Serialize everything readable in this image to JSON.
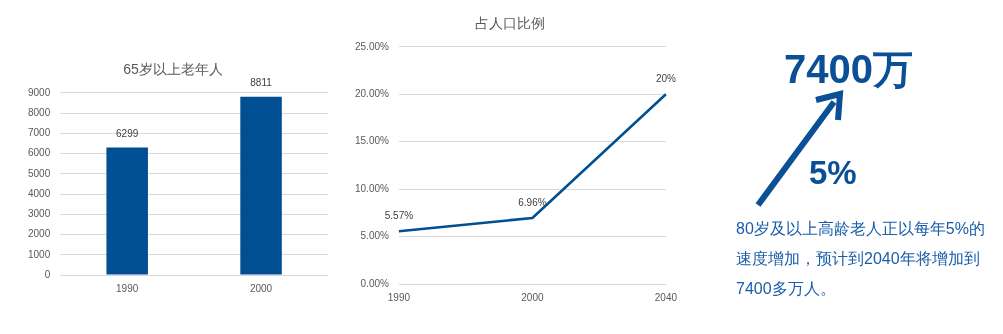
{
  "chart_data": [
    {
      "type": "bar",
      "title": "65岁以上老年人",
      "categories": [
        "1990",
        "2000"
      ],
      "values": [
        6299,
        8811
      ],
      "color": "#004f93",
      "ylim": [
        0,
        9000
      ],
      "yticks": [
        0,
        1000,
        2000,
        3000,
        4000,
        5000,
        6000,
        7000,
        8000,
        9000
      ],
      "grid": "y",
      "data_labels": true
    },
    {
      "type": "line",
      "title": "占人口比例",
      "categories": [
        "1990",
        "2000",
        "2040"
      ],
      "values": [
        5.57,
        6.96,
        20
      ],
      "value_labels": [
        "5.57%",
        "6.96%",
        "20%"
      ],
      "color": "#004f93",
      "ylim": [
        0,
        25
      ],
      "yticks": [
        {
          "value": 0,
          "label": "0.00%"
        },
        {
          "value": 5,
          "label": "5.00%"
        },
        {
          "value": 10,
          "label": "10.00%"
        },
        {
          "value": 15,
          "label": "15.00%"
        },
        {
          "value": 20,
          "label": "20.00%"
        },
        {
          "value": 25,
          "label": "25.00%"
        }
      ],
      "grid": "y",
      "marker": "none"
    },
    {
      "type": "other",
      "annotations": [
        "7400万",
        "5%",
        "80岁及以上高龄老人正以每年5%的速度增加，预计到2040年将增加到7400多万人。"
      ]
    }
  ]
}
